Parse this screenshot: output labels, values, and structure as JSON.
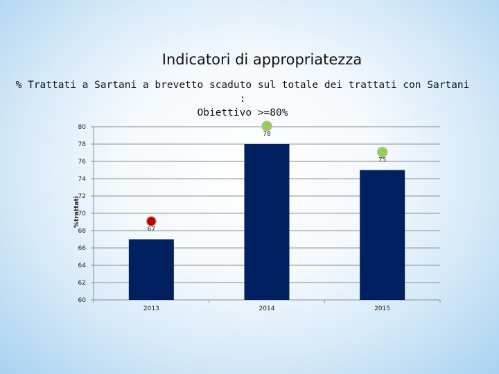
{
  "slide": {
    "title": "Indicatori di appropriatezza",
    "subtitle_line1": "% Trattati a Sartani a brevetto scaduto sul totale dei trattati con Sartani :",
    "subtitle_line2": "Obiettivo >=80%"
  },
  "colors": {
    "bar": "#002060",
    "marker_ok": "#92d050",
    "marker_bad": "#c00000"
  },
  "chart_data": {
    "type": "bar",
    "categories": [
      "2013",
      "2014",
      "2015"
    ],
    "values": [
      67,
      78,
      75
    ],
    "data_labels": [
      "67",
      "78",
      "75"
    ],
    "markers": [
      "marker-bad",
      "marker-ok",
      "marker-ok"
    ],
    "ylabel": "%trattati",
    "xlabel": "",
    "ylim": [
      60,
      80
    ],
    "yticks": [
      60,
      62,
      64,
      66,
      68,
      70,
      72,
      74,
      76,
      78,
      80
    ],
    "grid": true
  }
}
